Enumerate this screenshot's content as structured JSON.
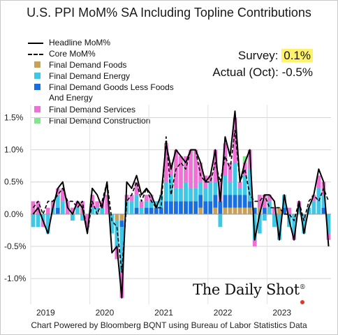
{
  "chart_data": {
    "type": "bar",
    "title": "U.S. PPI MoM% SA Including Topline Contributions",
    "ylim": [
      -1.4,
      1.7
    ],
    "yticks": [
      "1.5%",
      "1.0%",
      "0.5%",
      "0.0%",
      "-0.5%",
      "-1.0%"
    ],
    "ytick_values": [
      1.5,
      1.0,
      0.5,
      0.0,
      -0.5,
      -1.0
    ],
    "x_labels": [
      "2019",
      "2020",
      "2021",
      "2022",
      "2023"
    ],
    "x_label_index": [
      0,
      12,
      24,
      36,
      48
    ],
    "grid": true,
    "legend_position": "top-left",
    "x": [
      "2018-10",
      "2018-11",
      "2018-12",
      "2019-01",
      "2019-02",
      "2019-03",
      "2019-04",
      "2019-05",
      "2019-06",
      "2019-07",
      "2019-08",
      "2019-09",
      "2019-10",
      "2019-11",
      "2019-12",
      "2020-01",
      "2020-02",
      "2020-03",
      "2020-04",
      "2020-05",
      "2020-06",
      "2020-07",
      "2020-08",
      "2020-09",
      "2020-10",
      "2020-11",
      "2020-12",
      "2021-01",
      "2021-02",
      "2021-03",
      "2021-04",
      "2021-05",
      "2021-06",
      "2021-07",
      "2021-08",
      "2021-09",
      "2021-10",
      "2021-11",
      "2021-12",
      "2022-01",
      "2022-02",
      "2022-03",
      "2022-04",
      "2022-05",
      "2022-06",
      "2022-07",
      "2022-08",
      "2022-09",
      "2022-10",
      "2022-11",
      "2022-12",
      "2023-01",
      "2023-02",
      "2023-03",
      "2023-04",
      "2023-05",
      "2023-06",
      "2023-07",
      "2023-08",
      "2023-09",
      "2023-10"
    ],
    "series": [
      {
        "name": "Headline MoM%",
        "style": "solid",
        "values": [
          0.0,
          0.1,
          -0.1,
          -0.3,
          0.1,
          0.4,
          0.5,
          0.1,
          0.0,
          0.2,
          0.1,
          -0.3,
          0.4,
          0.3,
          0.1,
          0.5,
          -0.6,
          -0.5,
          -1.3,
          0.5,
          0.4,
          0.6,
          0.3,
          0.4,
          0.3,
          0.1,
          0.3,
          1.1,
          0.7,
          1.0,
          0.9,
          0.8,
          1.0,
          1.0,
          0.8,
          0.5,
          0.6,
          1.0,
          0.2,
          1.2,
          0.9,
          1.6,
          0.5,
          0.8,
          1.0,
          -0.4,
          0.0,
          0.3,
          0.3,
          0.2,
          -0.4,
          0.3,
          -0.1,
          -0.4,
          0.2,
          -0.3,
          0.1,
          0.3,
          0.7,
          0.5,
          -0.5
        ]
      },
      {
        "name": "Core MoM%",
        "style": "dashed",
        "values": [
          0.1,
          0.2,
          0.0,
          0.2,
          0.2,
          0.3,
          0.4,
          0.2,
          0.2,
          0.1,
          0.2,
          -0.3,
          0.2,
          0.0,
          0.2,
          0.5,
          -0.1,
          -0.2,
          -0.9,
          0.2,
          0.3,
          0.5,
          0.2,
          0.4,
          0.2,
          0.1,
          0.1,
          1.2,
          0.3,
          0.7,
          0.8,
          0.7,
          1.0,
          1.0,
          0.6,
          0.5,
          0.5,
          0.8,
          0.5,
          0.9,
          0.7,
          1.3,
          0.5,
          0.7,
          0.3,
          0.2,
          0.2,
          0.3,
          0.1,
          0.1,
          0.1,
          0.0,
          0.0,
          -0.1,
          0.2,
          -0.1,
          0.2,
          0.3,
          0.2,
          0.4,
          0.2
        ]
      }
    ],
    "stacked_bars": {
      "Final Demand Foods": [
        0.0,
        0.0,
        0.0,
        0.0,
        0.0,
        0.0,
        0.0,
        0.0,
        0.0,
        0.0,
        0.0,
        0.0,
        0.0,
        0.0,
        0.0,
        0.0,
        0.0,
        -0.1,
        -0.1,
        0.0,
        0.0,
        0.0,
        0.0,
        0.0,
        0.0,
        0.0,
        0.0,
        0.0,
        0.0,
        0.0,
        0.0,
        0.0,
        0.0,
        0.0,
        0.1,
        0.0,
        0.0,
        0.1,
        0.0,
        0.1,
        0.1,
        0.1,
        0.1,
        0.1,
        0.1,
        0.0,
        0.1,
        0.0,
        0.0,
        0.0,
        0.1,
        0.0,
        0.0,
        0.0,
        0.0,
        0.0,
        0.0,
        0.0,
        0.0,
        0.0,
        0.0
      ],
      "Final Demand Energy": [
        -0.2,
        -0.2,
        -0.1,
        -0.3,
        0.1,
        0.2,
        0.2,
        0.0,
        -0.1,
        0.1,
        -0.1,
        0.0,
        0.1,
        0.1,
        0.1,
        0.0,
        -0.3,
        -0.4,
        -0.7,
        0.2,
        0.2,
        0.2,
        0.1,
        0.1,
        0.1,
        0.1,
        0.2,
        0.3,
        0.4,
        0.2,
        0.2,
        0.3,
        0.2,
        0.2,
        0.2,
        0.2,
        0.3,
        0.2,
        -0.2,
        0.3,
        0.2,
        0.5,
        0.1,
        0.3,
        0.5,
        -0.4,
        -0.3,
        -0.1,
        0.2,
        -0.2,
        -0.4,
        0.2,
        -0.2,
        -0.3,
        0.1,
        -0.3,
        0.1,
        0.2,
        0.4,
        0.2,
        -0.3
      ],
      "Final Demand Goods Less Foods And Energy": [
        0.0,
        0.0,
        0.0,
        0.0,
        0.0,
        0.1,
        0.0,
        0.0,
        0.0,
        0.0,
        0.0,
        0.0,
        0.0,
        0.0,
        0.0,
        0.0,
        0.0,
        0.0,
        -0.1,
        0.0,
        0.0,
        0.1,
        0.0,
        0.1,
        0.1,
        0.1,
        0.1,
        0.2,
        0.2,
        0.2,
        0.2,
        0.2,
        0.2,
        0.2,
        0.2,
        0.2,
        0.2,
        0.2,
        0.2,
        0.2,
        0.2,
        0.2,
        0.2,
        0.2,
        0.1,
        0.1,
        0.0,
        0.1,
        0.0,
        0.0,
        0.0,
        0.1,
        0.0,
        0.0,
        0.0,
        0.0,
        0.0,
        0.0,
        0.0,
        0.1,
        0.0
      ],
      "Final Demand Services": [
        0.2,
        0.2,
        -0.1,
        0.1,
        0.1,
        0.1,
        0.2,
        0.2,
        0.1,
        0.1,
        0.2,
        -0.2,
        0.2,
        0.1,
        0.1,
        0.3,
        0.0,
        -0.2,
        -0.4,
        0.1,
        0.1,
        0.2,
        0.1,
        0.1,
        0.1,
        0.0,
        0.0,
        0.6,
        0.2,
        0.6,
        0.5,
        0.4,
        0.6,
        0.6,
        0.3,
        0.2,
        0.1,
        0.5,
        0.3,
        0.5,
        0.3,
        0.7,
        0.1,
        0.2,
        0.3,
        -0.1,
        0.2,
        0.2,
        0.1,
        0.1,
        0.0,
        0.0,
        0.1,
        -0.1,
        0.1,
        0.0,
        0.0,
        0.1,
        0.2,
        0.2,
        -0.1
      ],
      "Final Demand Construction": [
        0.0,
        0.0,
        0.0,
        0.0,
        0.0,
        0.0,
        0.0,
        0.0,
        0.0,
        0.0,
        0.0,
        0.0,
        0.0,
        0.0,
        0.0,
        0.0,
        0.0,
        0.0,
        0.0,
        0.0,
        0.0,
        0.0,
        0.0,
        0.0,
        0.0,
        0.0,
        0.0,
        0.0,
        0.0,
        0.0,
        0.0,
        0.0,
        0.0,
        0.0,
        0.0,
        0.0,
        0.0,
        0.0,
        0.0,
        0.0,
        0.0,
        0.0,
        0.0,
        0.1,
        0.0,
        0.0,
        0.0,
        0.0,
        0.0,
        0.0,
        0.0,
        0.0,
        0.0,
        0.0,
        0.0,
        0.0,
        0.0,
        0.0,
        0.0,
        0.0,
        0.0
      ]
    },
    "legend": [
      {
        "label": "Headline MoM%",
        "kind": "solid-line",
        "color": "#000000"
      },
      {
        "label": "Core MoM%",
        "kind": "dashed-line",
        "color": "#000000"
      },
      {
        "label": "Final Demand Foods",
        "kind": "swatch",
        "color": "#c9a25a"
      },
      {
        "label": "Final Demand Energy",
        "kind": "swatch",
        "color": "#3ec8e6"
      },
      {
        "label": "Final Demand Goods Less Foods And Energy",
        "kind": "swatch",
        "color": "#1a6fe0"
      },
      {
        "label": "Final Demand Services",
        "kind": "swatch",
        "color": "#ee72d6"
      },
      {
        "label": "Final Demand Construction",
        "kind": "swatch",
        "color": "#7ee88b"
      }
    ]
  },
  "annotations": {
    "survey_label": "Survey:",
    "survey_value": "0.1%",
    "actual_label": "Actual (Oct):",
    "actual_value": "-0.5%"
  },
  "footer": "Chart Powered by Bloomberg BQNT using Bureau of Labor Statistics Data",
  "brand": "The Daily Shot",
  "brand_mark": "®",
  "colors": {
    "foods": "#c9a25a",
    "energy": "#3ec8e6",
    "goods": "#1a6fe0",
    "services": "#ee72d6",
    "construction": "#7ee88b",
    "survey_highlight": "#fff36b",
    "brand_dot": "#e3342f"
  }
}
